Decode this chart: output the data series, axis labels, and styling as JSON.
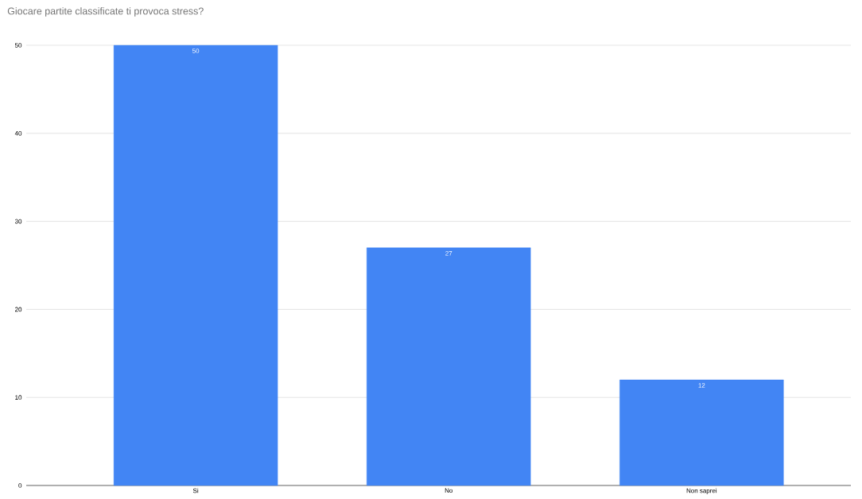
{
  "chart_data": {
    "type": "bar",
    "title": "Giocare partite classificate ti provoca stress?",
    "categories": [
      "Si",
      "No",
      "Non saprei"
    ],
    "values": [
      50,
      27,
      12
    ],
    "color": "#4285f4",
    "ylim": [
      0,
      50
    ],
    "yticks": [
      0,
      10,
      20,
      30,
      40,
      50
    ],
    "grid": "y",
    "data_labels": true
  }
}
